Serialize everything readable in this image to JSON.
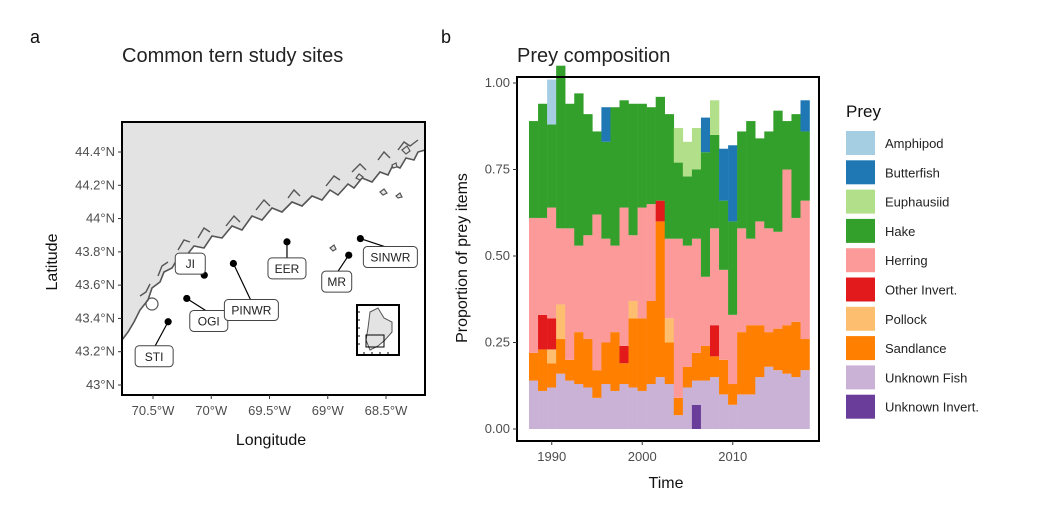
{
  "panel_a": {
    "letter": "a",
    "title": "Common tern study sites",
    "xlabel": "Longitude",
    "ylabel": "Latitude",
    "x_ticks": [
      "70.5°W",
      "70°W",
      "69.5°W",
      "69°W",
      "68.5°W"
    ],
    "y_ticks": [
      "44.4°N",
      "44.2°N",
      "44°N",
      "43.8°N",
      "43.6°N",
      "43.4°N",
      "43.2°N",
      "43°N"
    ],
    "sites": [
      {
        "name": "STI",
        "lon": -70.37,
        "lat": 43.38
      },
      {
        "name": "OGI",
        "lon": -70.21,
        "lat": 43.52
      },
      {
        "name": "JI",
        "lon": -70.06,
        "lat": 43.66
      },
      {
        "name": "PINWR",
        "lon": -69.81,
        "lat": 43.73
      },
      {
        "name": "EER",
        "lon": -69.35,
        "lat": 43.86
      },
      {
        "name": "MR",
        "lon": -68.82,
        "lat": 43.78
      },
      {
        "name": "SINWR",
        "lon": -68.72,
        "lat": 43.88
      }
    ]
  },
  "panel_b": {
    "letter": "b",
    "title": "Prey composition"
  },
  "chart_data": {
    "type": "bar",
    "stacked": true,
    "title": "Prey composition",
    "xlabel": "Time",
    "ylabel": "Proportion of prey items",
    "ylim": [
      0,
      1
    ],
    "x_ticks": [
      "1990",
      "2000",
      "2010"
    ],
    "y_ticks": [
      "0.00",
      "0.25",
      "0.50",
      "0.75",
      "1.00"
    ],
    "legend_title": "Prey",
    "legend_position": "right",
    "x": [
      1988,
      1989,
      1990,
      1991,
      1992,
      1993,
      1994,
      1995,
      1996,
      1997,
      1998,
      1999,
      2000,
      2001,
      2002,
      2003,
      2004,
      2005,
      2006,
      2007,
      2008,
      2009,
      2010,
      2011,
      2012,
      2013,
      2014,
      2015,
      2016,
      2017,
      2018
    ],
    "series": [
      {
        "name": "Unknown Invert.",
        "color": "#6a3d9a",
        "values": [
          0,
          0,
          0,
          0,
          0,
          0,
          0,
          0,
          0,
          0,
          0,
          0,
          0,
          0,
          0,
          0,
          0,
          0,
          0.07,
          0,
          0,
          0,
          0,
          0,
          0,
          0,
          0,
          0,
          0,
          0,
          0
        ]
      },
      {
        "name": "Unknown Fish",
        "color": "#cab2d6",
        "values": [
          0.14,
          0.11,
          0.12,
          0.16,
          0.14,
          0.13,
          0.12,
          0.09,
          0.13,
          0.11,
          0.13,
          0.12,
          0.11,
          0.13,
          0.15,
          0.13,
          0.04,
          0.12,
          0.07,
          0.14,
          0.15,
          0.1,
          0.07,
          0.1,
          0.1,
          0.15,
          0.18,
          0.17,
          0.16,
          0.15,
          0.17
        ]
      },
      {
        "name": "Sandlance",
        "color": "#ff7f00",
        "values": [
          0.08,
          0.12,
          0.07,
          0.1,
          0.06,
          0.15,
          0.14,
          0.08,
          0.12,
          0.17,
          0.06,
          0.2,
          0.21,
          0.24,
          0.45,
          0.12,
          0.05,
          0.06,
          0.08,
          0.1,
          0.06,
          0.1,
          0.06,
          0.18,
          0.2,
          0.15,
          0.1,
          0.12,
          0.14,
          0.16,
          0.09
        ]
      },
      {
        "name": "Pollock",
        "color": "#fdbf6f",
        "values": [
          0,
          0,
          0.04,
          0.1,
          0,
          0,
          0,
          0,
          0,
          0,
          0,
          0.05,
          0,
          0,
          0,
          0.07,
          0,
          0,
          0,
          0,
          0,
          0,
          0,
          0,
          0,
          0,
          0,
          0,
          0,
          0,
          0
        ]
      },
      {
        "name": "Other Invert.",
        "color": "#e31a1c",
        "values": [
          0,
          0.1,
          0.09,
          0,
          0,
          0,
          0,
          0,
          0,
          0,
          0.05,
          0,
          0,
          0,
          0.06,
          0,
          0,
          0,
          0,
          0,
          0.09,
          0,
          0,
          0,
          0,
          0,
          0,
          0,
          0,
          0,
          0
        ]
      },
      {
        "name": "Herring",
        "color": "#fb9a99",
        "values": [
          0.39,
          0.28,
          0.32,
          0.22,
          0.38,
          0.25,
          0.3,
          0.45,
          0.3,
          0.25,
          0.4,
          0.19,
          0.32,
          0.28,
          0,
          0.23,
          0.46,
          0.35,
          0.33,
          0.2,
          0.28,
          0.26,
          0.2,
          0.3,
          0.25,
          0.3,
          0.3,
          0.28,
          0.45,
          0.3,
          0.4
        ]
      },
      {
        "name": "Hake",
        "color": "#33a02c",
        "values": [
          0.28,
          0.33,
          0.24,
          0.47,
          0.36,
          0.44,
          0.35,
          0.24,
          0.28,
          0.4,
          0.31,
          0.38,
          0.3,
          0.28,
          0.3,
          0.36,
          0.22,
          0.2,
          0.2,
          0.36,
          0.27,
          0.2,
          0.27,
          0.28,
          0.34,
          0.24,
          0.28,
          0.35,
          0.14,
          0.3,
          0.2
        ]
      },
      {
        "name": "Euphausiid",
        "color": "#b2df8a",
        "values": [
          0,
          0,
          0,
          0,
          0,
          0,
          0,
          0,
          0,
          0,
          0,
          0,
          0,
          0,
          0,
          0,
          0.1,
          0.1,
          0.12,
          0,
          0.1,
          0,
          0,
          0,
          0,
          0,
          0,
          0,
          0,
          0,
          0
        ]
      },
      {
        "name": "Butterfish",
        "color": "#1f78b4",
        "values": [
          0,
          0,
          0,
          0,
          0,
          0,
          0,
          0,
          0.1,
          0,
          0,
          0,
          0,
          0,
          0,
          0,
          0,
          0,
          0,
          0.1,
          0,
          0.15,
          0.22,
          0,
          0,
          0,
          0,
          0,
          0,
          0,
          0.09
        ]
      },
      {
        "name": "Amphipod",
        "color": "#a6cee3",
        "values": [
          0,
          0,
          0.13,
          0,
          0,
          0,
          0,
          0,
          0,
          0,
          0,
          0,
          0,
          0,
          0,
          0,
          0,
          0,
          0,
          0,
          0,
          0,
          0,
          0,
          0,
          0,
          0,
          0,
          0,
          0,
          0
        ]
      }
    ]
  }
}
